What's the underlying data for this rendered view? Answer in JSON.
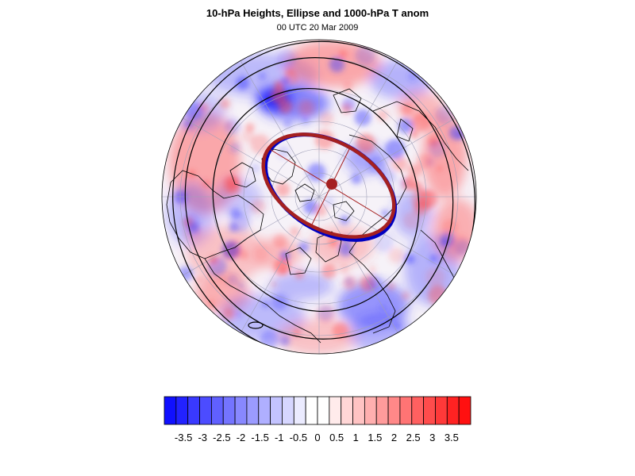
{
  "title": "10-hPa Heights, Ellipse and 1000-hPa T anom",
  "subtitle": "00 UTC 20 Mar 2009",
  "colorbar": {
    "colors": [
      "#1010ff",
      "#2222ff",
      "#3939ff",
      "#4c4cff",
      "#6060ff",
      "#7474ff",
      "#8888ff",
      "#9b9bff",
      "#afafff",
      "#c3c3ff",
      "#d6d6ff",
      "#ebebff",
      "#ffffff",
      "#ffffff",
      "#ffebeb",
      "#ffd6d6",
      "#ffc3c3",
      "#ffafaf",
      "#ff9b9b",
      "#ff8888",
      "#ff7474",
      "#ff6060",
      "#ff4c4c",
      "#ff3939",
      "#ff2222",
      "#ff1010"
    ],
    "labels": [
      "-3.5",
      "-3",
      "-2.5",
      "-2",
      "-1.5",
      "-1",
      "-0.5",
      "0",
      "0.5",
      "1",
      "1.5",
      "2",
      "2.5",
      "3",
      "3.5"
    ]
  },
  "map": {
    "projection": "polar stereographic (north pole)",
    "field_shaded": "1000-hPa temperature anomaly",
    "field_contoured": "10-hPa geopotential heights",
    "anomaly_colors": {
      "negative": "#3a3aff",
      "positive": "#ff4c4c"
    },
    "ellipse_colors": {
      "observed": "#0000c0",
      "fitted": "#a52020"
    },
    "centroid_color": "#a52020"
  }
}
